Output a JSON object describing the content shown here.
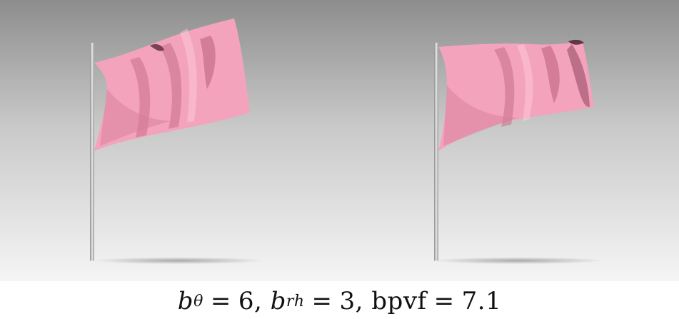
{
  "colors": {
    "flag": "#f2a0b8",
    "flag_shadow": "#c46a86",
    "pole": "#b9b9b9",
    "background_top": "#8f8f8f",
    "background_bottom": "#f6f6f6"
  },
  "caption": {
    "b_theta_symbol": "b",
    "b_theta_sub": "θ",
    "b_theta_value": "6",
    "b_rh_symbol": "b",
    "b_rh_sub": "rh",
    "b_rh_value": "3",
    "bpvf_label": "bpvf",
    "bpvf_value": "7.1"
  }
}
